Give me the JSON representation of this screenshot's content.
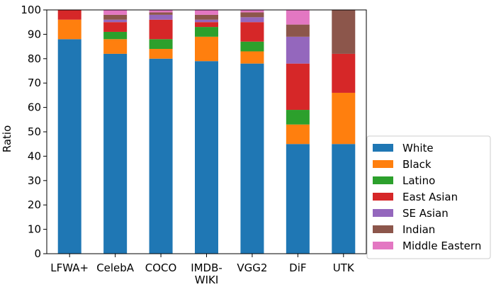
{
  "chart_data": {
    "type": "bar",
    "stacked": true,
    "title": "",
    "xlabel": "",
    "ylabel": "Ratio",
    "ylim": [
      0,
      100
    ],
    "yticks": [
      0,
      10,
      20,
      30,
      40,
      50,
      60,
      70,
      80,
      90,
      100
    ],
    "categories": [
      {
        "lines": [
          "LFWA+"
        ]
      },
      {
        "lines": [
          "CelebA"
        ]
      },
      {
        "lines": [
          "COCO"
        ]
      },
      {
        "lines": [
          "IMDB-",
          "WIKI"
        ]
      },
      {
        "lines": [
          "VGG2"
        ]
      },
      {
        "lines": [
          "DiF"
        ]
      },
      {
        "lines": [
          "UTK"
        ]
      }
    ],
    "legend_position": "lower-right-outside",
    "series": [
      {
        "name": "White",
        "color": "#1f77b4",
        "values": [
          88,
          82,
          80,
          79,
          78,
          45,
          45
        ]
      },
      {
        "name": "Black",
        "color": "#ff7f0e",
        "values": [
          8,
          6,
          4,
          10,
          5,
          8,
          21
        ]
      },
      {
        "name": "Latino",
        "color": "#2ca02c",
        "values": [
          0,
          3,
          4,
          4,
          4,
          6,
          0
        ]
      },
      {
        "name": "East Asian",
        "color": "#d62728",
        "values": [
          4,
          4,
          8,
          2,
          8,
          19,
          16
        ]
      },
      {
        "name": "SE Asian",
        "color": "#9467bd",
        "values": [
          0,
          1,
          2,
          1,
          2,
          11,
          0
        ]
      },
      {
        "name": "Indian",
        "color": "#8c564b",
        "values": [
          0,
          2,
          1,
          2,
          2,
          5,
          18
        ]
      },
      {
        "name": "Middle Eastern",
        "color": "#e377c2",
        "values": [
          0,
          2,
          1,
          2,
          1,
          6,
          0
        ]
      }
    ]
  }
}
